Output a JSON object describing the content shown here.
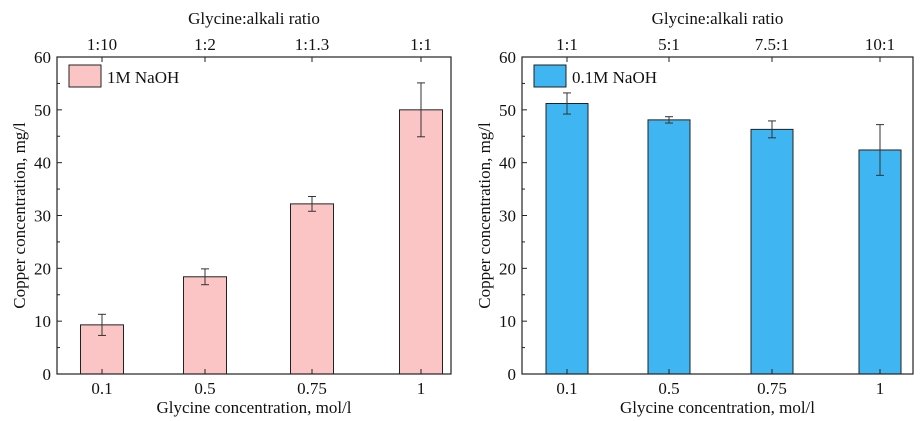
{
  "chart_data": [
    {
      "type": "bar",
      "categories": [
        "0.1",
        "0.5",
        "0.75",
        "1"
      ],
      "series": [
        {
          "name": "1M NaOH",
          "values": [
            9.3,
            18.4,
            32.2,
            50.0
          ],
          "errors": [
            2.0,
            1.5,
            1.4,
            5.1
          ],
          "color": "#fcc5c5"
        }
      ],
      "xlabel": "Glycine concentration, mol/l",
      "ylabel": "Copper concentration, mg/l",
      "top_axis_label": "Glycine:alkali ratio",
      "top_categories": [
        "1:10",
        "1:2",
        "1:1.3",
        "1:1"
      ],
      "ylim": [
        0,
        60
      ],
      "yticks": [
        0,
        10,
        20,
        30,
        40,
        50,
        60
      ],
      "legend_position": "top-left",
      "grid": false
    },
    {
      "type": "bar",
      "categories": [
        "0.1",
        "0.5",
        "0.75",
        "1"
      ],
      "series": [
        {
          "name": "0.1M NaOH",
          "values": [
            51.2,
            48.1,
            46.3,
            42.4
          ],
          "errors": [
            2.0,
            0.6,
            1.6,
            4.8
          ],
          "color": "#3fb6f2"
        }
      ],
      "xlabel": "Glycine concentration, mol/l",
      "ylabel": "Copper concentration, mg/l",
      "top_axis_label": "Glycine:alkali ratio",
      "top_categories": [
        "1:1",
        "5:1",
        "7.5:1",
        "10:1"
      ],
      "ylim": [
        0,
        60
      ],
      "yticks": [
        0,
        10,
        20,
        30,
        40,
        50,
        60
      ],
      "legend_position": "top-left",
      "grid": false
    }
  ]
}
